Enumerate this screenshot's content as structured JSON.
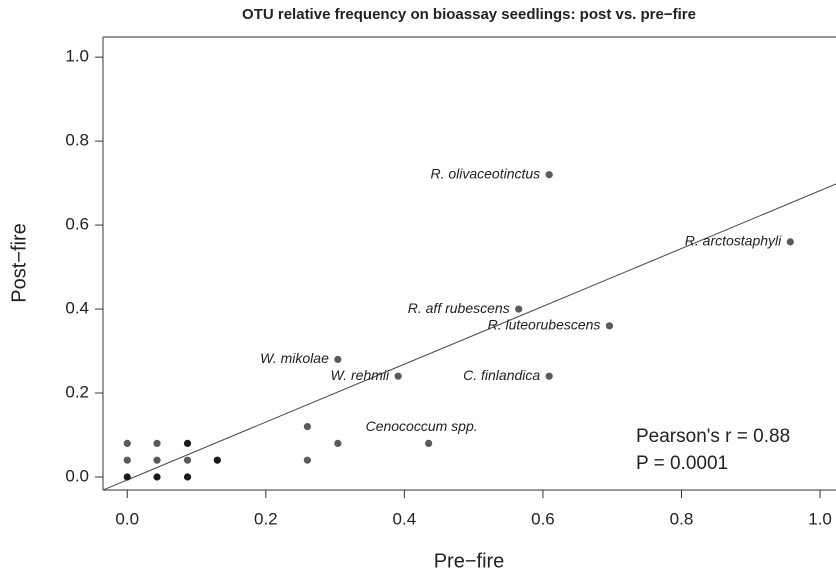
{
  "chart_data": {
    "type": "scatter",
    "title": "OTU relative frequency on bioassay seedlings: post vs. pre−fire",
    "x_label": "Pre−fire",
    "y_label": "Post−fire",
    "series": [
      {
        "x": [
          0,
          0,
          0,
          0.043,
          0.043,
          0.043,
          0.087,
          0.087,
          0.087,
          0.13,
          0.26,
          0.26,
          0.304,
          0.435,
          0.304,
          0.391,
          0.565,
          0.609,
          0.609,
          0.696,
          0.957
        ],
        "values": [
          0,
          0.04,
          0.08,
          0,
          0.04,
          0.08,
          0,
          0.04,
          0.08,
          0.04,
          0.04,
          0.12,
          0.08,
          0.08,
          0.28,
          0.24,
          0.4,
          0.24,
          0.72,
          0.36,
          0.56
        ],
        "colors": [
          "#1a1a1a",
          "#5a5a5a",
          "#5a5a5a",
          "#1a1a1a",
          "#5a5a5a",
          "#5a5a5a",
          "#1a1a1a",
          "#5a5a5a",
          "#1a1a1a",
          "#1a1a1a",
          "#5a5a5a",
          "#5a5a5a",
          "#5a5a5a",
          "#5a5a5a",
          "#5a5a5a",
          "#5a5a5a",
          "#5a5a5a",
          "#5a5a5a",
          "#5a5a5a",
          "#5a5a5a",
          "#5a5a5a"
        ],
        "point_labels": [
          null,
          null,
          null,
          null,
          null,
          null,
          null,
          null,
          null,
          null,
          null,
          null,
          null,
          "Cenococcum spp.",
          "W. mikolae",
          "W. rehmii",
          "R. aff rubescens",
          "C. finlandica",
          "R. olivaceotinctus",
          "R. luteorubescens",
          "R. arctostaphyli"
        ]
      }
    ],
    "fit_line": {
      "slope": 0.689,
      "intercept": -0.007
    },
    "annotations": [
      "Pearson's r = 0.88",
      "P = 0.0001"
    ],
    "xlim": [
      -0.035,
      1.023
    ],
    "ylim": [
      -0.031,
      1.048
    ],
    "xticks": [
      {
        "value": 0,
        "label": "0.0"
      },
      0.2,
      0.4,
      0.6,
      0.8,
      {
        "value": 1,
        "label": "1.0"
      }
    ],
    "yticks": [
      {
        "value": 0,
        "label": "0.0"
      },
      0.2,
      0.4,
      0.6,
      0.8,
      {
        "value": 1,
        "label": "1.0"
      }
    ]
  }
}
